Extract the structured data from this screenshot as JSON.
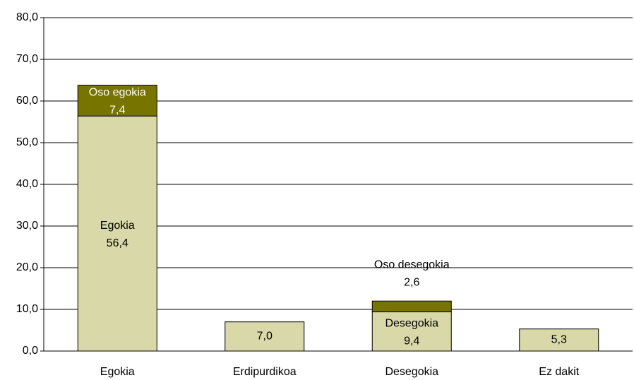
{
  "chart_data": {
    "type": "stacked_bar",
    "categories": [
      "Egokia",
      "Erdipurdikoa",
      "Desegokia",
      "Ez dakit"
    ],
    "series": [
      {
        "color": "#d8d8a8",
        "values": [
          56.4,
          7.0,
          9.4,
          5.3
        ],
        "value_labels": [
          "56,4",
          "7,0",
          "9,4",
          "5,3"
        ],
        "point_names": [
          "Egokia",
          null,
          "Desegokia",
          null
        ]
      },
      {
        "color": "#787400",
        "values": [
          7.4,
          null,
          2.6,
          null
        ],
        "value_labels": [
          "7,4",
          null,
          "2,6",
          null
        ],
        "point_names": [
          "Oso egokia",
          null,
          "Oso desegokia",
          null
        ]
      }
    ],
    "ylim": [
      0,
      80
    ],
    "yticks": [
      {
        "value": 0,
        "label": "0,0"
      },
      {
        "value": 10,
        "label": "10,0"
      },
      {
        "value": 20,
        "label": "20,0"
      },
      {
        "value": 30,
        "label": "30,0"
      },
      {
        "value": 40,
        "label": "40,0"
      },
      {
        "value": 50,
        "label": "50,0"
      },
      {
        "value": 60,
        "label": "60,0"
      },
      {
        "value": 70,
        "label": "70,0"
      },
      {
        "value": 80,
        "label": "80,0"
      }
    ],
    "grid": true
  }
}
